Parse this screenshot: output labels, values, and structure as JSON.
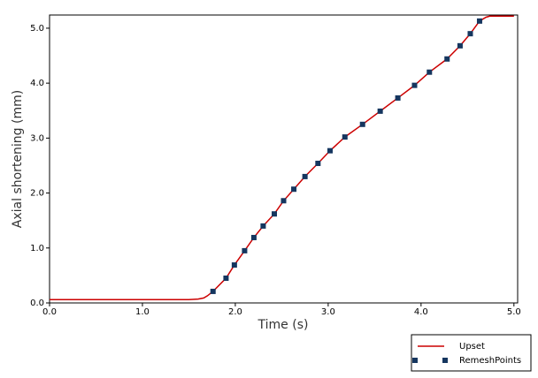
{
  "chart_data": {
    "type": "line",
    "x_label": "Time (s)",
    "y_label": "Axial shortening (mm)",
    "xlim": [
      0,
      5.04
    ],
    "ylim": [
      0,
      5.24
    ],
    "xticks": [
      {
        "value": 0,
        "label": "0.0"
      },
      {
        "value": 1,
        "label": "1.0"
      },
      {
        "value": 2,
        "label": "2.0"
      },
      {
        "value": 3,
        "label": "3.0"
      },
      {
        "value": 4,
        "label": "4.0"
      },
      {
        "value": 5,
        "label": "5.0"
      }
    ],
    "yticks": [
      {
        "value": 0,
        "label": "0.0"
      },
      {
        "value": 1,
        "label": "1.0"
      },
      {
        "value": 2,
        "label": "2.0"
      },
      {
        "value": 3,
        "label": "3.0"
      },
      {
        "value": 4,
        "label": "4.0"
      },
      {
        "value": 5,
        "label": "5.0"
      }
    ],
    "legend": "bottom-right",
    "series": [
      {
        "name": "Upset",
        "color": "#cc0000",
        "marker": "line",
        "x": [
          0,
          1.5,
          1.6,
          1.66,
          1.7,
          1.76,
          1.9,
          1.99,
          2.1,
          2.2,
          2.3,
          2.42,
          2.52,
          2.63,
          2.75,
          2.89,
          3.02,
          3.18,
          3.37,
          3.56,
          3.75,
          3.93,
          4.09,
          4.28,
          4.42,
          4.53,
          4.63,
          4.7,
          4.74,
          5.0
        ],
        "values": [
          0.06,
          0.06,
          0.07,
          0.09,
          0.13,
          0.21,
          0.45,
          0.69,
          0.95,
          1.19,
          1.4,
          1.62,
          1.86,
          2.07,
          2.3,
          2.54,
          2.77,
          3.02,
          3.25,
          3.49,
          3.73,
          3.96,
          4.2,
          4.44,
          4.68,
          4.9,
          5.13,
          5.2,
          5.22,
          5.22
        ]
      },
      {
        "name": "RemeshPoints",
        "color": "#15365f",
        "marker": "square",
        "x": [
          1.76,
          1.9,
          1.99,
          2.1,
          2.2,
          2.3,
          2.42,
          2.52,
          2.63,
          2.75,
          2.89,
          3.02,
          3.18,
          3.37,
          3.56,
          3.75,
          3.93,
          4.09,
          4.28,
          4.42,
          4.53,
          4.63
        ],
        "values": [
          0.21,
          0.45,
          0.69,
          0.95,
          1.19,
          1.4,
          1.62,
          1.86,
          2.07,
          2.3,
          2.54,
          2.77,
          3.02,
          3.25,
          3.49,
          3.73,
          3.96,
          4.2,
          4.44,
          4.68,
          4.9,
          5.13
        ]
      }
    ]
  }
}
